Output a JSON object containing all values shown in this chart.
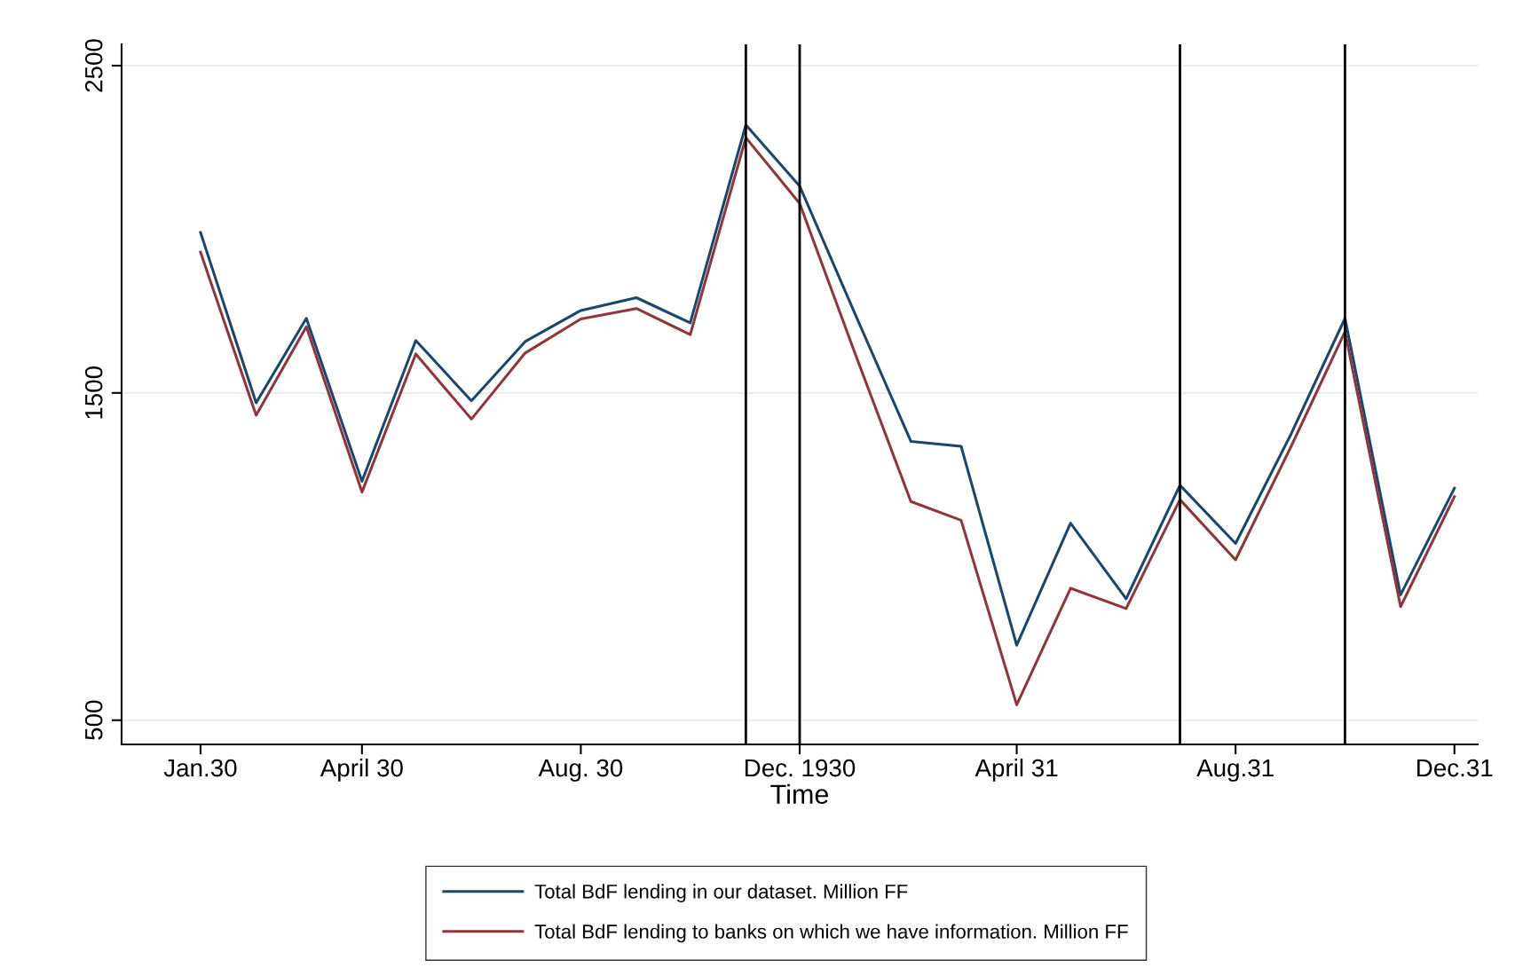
{
  "chart_data": {
    "type": "line",
    "xlabel": "Time",
    "x": [
      "1930-01",
      "1930-02",
      "1930-03",
      "1930-04",
      "1930-05",
      "1930-06",
      "1930-07",
      "1930-08",
      "1930-09",
      "1930-10",
      "1930-11",
      "1930-12",
      "1931-01",
      "1931-02",
      "1931-03",
      "1931-04",
      "1931-05",
      "1931-06",
      "1931-07",
      "1931-08",
      "1931-09",
      "1931-10",
      "1931-11",
      "1931-12"
    ],
    "series": [
      {
        "name": "Total BdF lending in our dataset. Million FF",
        "color": "#1a476f",
        "values": [
          1990,
          1470,
          1728,
          1230,
          1660,
          1476,
          1657,
          1752,
          1791,
          1714,
          2319,
          2132,
          1740,
          1352,
          1337,
          729,
          1102,
          871,
          1218,
          1040,
          1375,
          1728,
          883,
          1209
        ]
      },
      {
        "name": "Total BdF lending to banks on which we have information. Million FF",
        "color": "#90353b",
        "values": [
          1930,
          1432,
          1702,
          1197,
          1619,
          1420,
          1622,
          1726,
          1758,
          1678,
          2280,
          2079,
          1619,
          1168,
          1111,
          547,
          903,
          841,
          1174,
          990,
          1337,
          1687,
          847,
          1183
        ]
      }
    ],
    "xlim": [
      "1929-11-18",
      "1931-12-14"
    ],
    "xticks": [
      {
        "value": "1930-01",
        "label": "Jan.30"
      },
      {
        "value": "1930-04",
        "label": "April 30"
      },
      {
        "value": "1930-08",
        "label": "Aug. 30"
      },
      {
        "value": "1930-12",
        "label": "Dec. 1930"
      },
      {
        "value": "1931-04",
        "label": "April 31"
      },
      {
        "value": "1931-08",
        "label": "Aug.31"
      },
      {
        "value": "1931-12",
        "label": "Dec.31"
      }
    ],
    "ylim": [
      426,
      2565
    ],
    "yticks": [
      500,
      1500,
      2500
    ],
    "ref_lines": [
      {
        "axis": "x",
        "value": "1930-11",
        "color": "#000000"
      },
      {
        "axis": "x",
        "value": "1930-12",
        "color": "#000000"
      },
      {
        "axis": "x",
        "value": "1931-07",
        "color": "#000000"
      },
      {
        "axis": "x",
        "value": "1931-10",
        "color": "#000000"
      }
    ],
    "grid": "y",
    "legend": "bottom",
    "line_style": "solid",
    "marker": "none"
  }
}
